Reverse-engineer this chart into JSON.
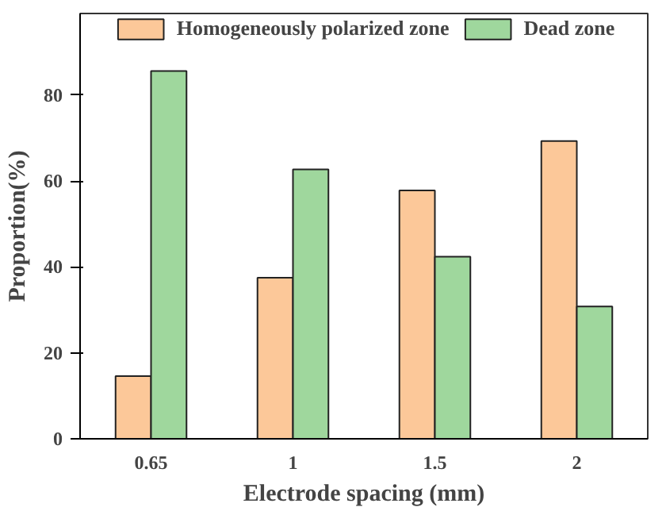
{
  "chart_data": {
    "type": "bar",
    "xlabel": "Electrode spacing (mm)",
    "ylabel": "Proportion(%)",
    "categories": [
      "0.65",
      "1",
      "1.5",
      "2"
    ],
    "series": [
      {
        "name": "Homogeneously polarized zone",
        "color": "#fcc899",
        "values": [
          14.6,
          37.5,
          57.8,
          69.3
        ]
      },
      {
        "name": "Dead zone",
        "color": "#9fd79d",
        "values": [
          85.6,
          62.7,
          42.4,
          30.8
        ]
      }
    ],
    "ylim": [
      0,
      99
    ],
    "yticks": [
      0,
      20,
      40,
      60,
      80
    ],
    "grid": false,
    "legend": "top"
  }
}
